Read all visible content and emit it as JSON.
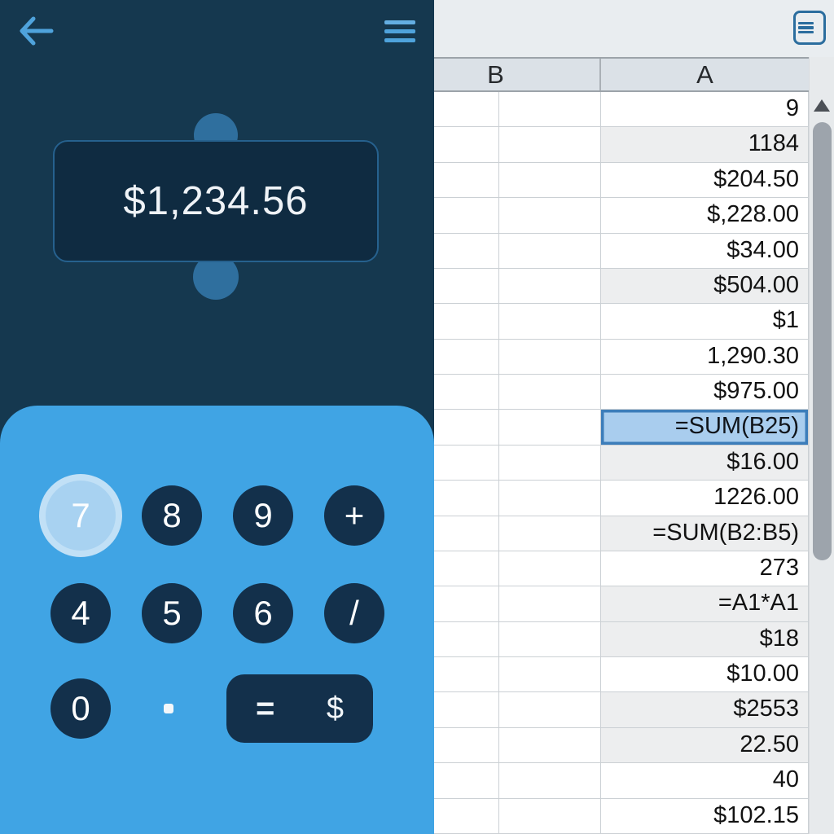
{
  "calculator": {
    "display_value": "$1,234.56",
    "keys": [
      {
        "label": "7",
        "type": "digit",
        "state": "pressed"
      },
      {
        "label": "8",
        "type": "digit"
      },
      {
        "label": "9",
        "type": "digit"
      },
      {
        "label": "+",
        "type": "operator"
      },
      {
        "label": "4",
        "type": "digit"
      },
      {
        "label": "5",
        "type": "digit"
      },
      {
        "label": "6",
        "type": "digit"
      },
      {
        "label": "/",
        "type": "operator"
      },
      {
        "label": "0",
        "type": "digit"
      }
    ],
    "decimal_key": ".",
    "equals_key": "=",
    "currency_key": "$",
    "icons": {
      "back": "back-arrow",
      "menu": "hamburger"
    }
  },
  "spreadsheet": {
    "column_headers": [
      "B",
      "A"
    ],
    "rows": [
      {
        "a": "9"
      },
      {
        "a": "1184",
        "shaded": true
      },
      {
        "a": "$204.50"
      },
      {
        "a": "$,228.00"
      },
      {
        "a": "$34.00"
      },
      {
        "a": "$504.00",
        "shaded": true
      },
      {
        "a": "$1"
      },
      {
        "a": "1,290.30"
      },
      {
        "a": "$975.00"
      },
      {
        "a": "=SUM(B25)",
        "selected": true
      },
      {
        "a": "$16.00",
        "shaded": true
      },
      {
        "a": "1226.00"
      },
      {
        "a": "=SUM(B2:B5)",
        "shaded": true
      },
      {
        "a": "273"
      },
      {
        "a": "=A1*A1",
        "shaded": true
      },
      {
        "a": "$18",
        "shaded": true
      },
      {
        "a": "$10.00"
      },
      {
        "a": "$2553",
        "shaded": true
      },
      {
        "a": "22.50",
        "shaded": true
      },
      {
        "a": "40"
      },
      {
        "a": "$102.15"
      }
    ],
    "selected_cell_value": "=SUM(B25)",
    "icons": {
      "toolbar": "boxed-list",
      "scroll_up": "triangle-up"
    }
  },
  "colors": {
    "panel_navy": "#15384F",
    "keypad_blue": "#40A4E4",
    "key_navy": "#13304B",
    "accent_blue": "#4FA3DC",
    "selection_fill": "#A9CDEE",
    "selection_border": "#3C7DBA",
    "shaded_row": "#EDEEEF",
    "header_band": "#DBE1E7"
  }
}
